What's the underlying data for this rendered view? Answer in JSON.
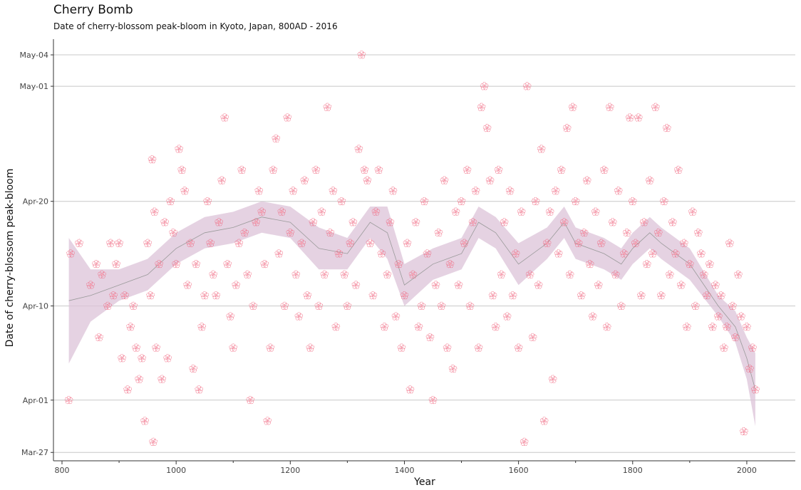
{
  "chart_data": {
    "type": "scatter",
    "title": "Cherry Bomb",
    "subtitle": "Date of cherry-blossom peak-bloom in Kyoto, Japan, 800AD - 2016",
    "xlabel": "Year",
    "ylabel": "Date of cherry-blossom peak-bloom",
    "xlim": [
      785,
      2085
    ],
    "ylim": [
      85.2,
      125.5
    ],
    "x_ticks": [
      800,
      1000,
      1200,
      1400,
      1600,
      1800,
      2000
    ],
    "x_tick_labels": [
      "800",
      "1000",
      "1200",
      "1400",
      "1600",
      "1800",
      "2000"
    ],
    "y_ticks": [
      86,
      91,
      100,
      110,
      121,
      124
    ],
    "y_tick_labels": [
      "Mar-27",
      "Apr-01",
      "Apr-10",
      "Apr-20",
      "May-01",
      "May-04"
    ],
    "grid": "horizontal",
    "colors": {
      "point": "#f0607a",
      "ribbon": "#dcc3d8",
      "trend": "#9a9a9a",
      "grid": "#c8c8c8",
      "axis": "#333333"
    },
    "marker": "cherry-blossom-icon",
    "points": [
      [
        812,
        91
      ],
      [
        815,
        105
      ],
      [
        830,
        106
      ],
      [
        850,
        102
      ],
      [
        860,
        104
      ],
      [
        865,
        97
      ],
      [
        870,
        103
      ],
      [
        880,
        100
      ],
      [
        885,
        106
      ],
      [
        890,
        101
      ],
      [
        895,
        104
      ],
      [
        900,
        106
      ],
      [
        905,
        95
      ],
      [
        910,
        101
      ],
      [
        915,
        92
      ],
      [
        920,
        98
      ],
      [
        925,
        100
      ],
      [
        930,
        96
      ],
      [
        935,
        93
      ],
      [
        940,
        95
      ],
      [
        945,
        89
      ],
      [
        950,
        106
      ],
      [
        955,
        101
      ],
      [
        958,
        114
      ],
      [
        960,
        87
      ],
      [
        962,
        109
      ],
      [
        965,
        96
      ],
      [
        970,
        104
      ],
      [
        975,
        93
      ],
      [
        980,
        108
      ],
      [
        985,
        95
      ],
      [
        990,
        110
      ],
      [
        995,
        107
      ],
      [
        1000,
        104
      ],
      [
        1005,
        115
      ],
      [
        1010,
        113
      ],
      [
        1015,
        111
      ],
      [
        1020,
        102
      ],
      [
        1025,
        106
      ],
      [
        1030,
        94
      ],
      [
        1035,
        104
      ],
      [
        1040,
        92
      ],
      [
        1045,
        98
      ],
      [
        1050,
        101
      ],
      [
        1055,
        110
      ],
      [
        1060,
        106
      ],
      [
        1065,
        103
      ],
      [
        1070,
        101
      ],
      [
        1075,
        108
      ],
      [
        1080,
        112
      ],
      [
        1085,
        118
      ],
      [
        1090,
        104
      ],
      [
        1095,
        99
      ],
      [
        1100,
        96
      ],
      [
        1105,
        102
      ],
      [
        1110,
        106
      ],
      [
        1115,
        113
      ],
      [
        1120,
        107
      ],
      [
        1125,
        103
      ],
      [
        1130,
        91
      ],
      [
        1135,
        100
      ],
      [
        1140,
        108
      ],
      [
        1145,
        111
      ],
      [
        1150,
        109
      ],
      [
        1155,
        104
      ],
      [
        1160,
        89
      ],
      [
        1165,
        96
      ],
      [
        1170,
        113
      ],
      [
        1175,
        116
      ],
      [
        1180,
        105
      ],
      [
        1185,
        109
      ],
      [
        1190,
        100
      ],
      [
        1195,
        118
      ],
      [
        1200,
        107
      ],
      [
        1205,
        111
      ],
      [
        1210,
        103
      ],
      [
        1215,
        99
      ],
      [
        1220,
        106
      ],
      [
        1225,
        112
      ],
      [
        1230,
        101
      ],
      [
        1235,
        96
      ],
      [
        1240,
        108
      ],
      [
        1245,
        113
      ],
      [
        1250,
        100
      ],
      [
        1255,
        109
      ],
      [
        1260,
        103
      ],
      [
        1265,
        119
      ],
      [
        1270,
        107
      ],
      [
        1275,
        111
      ],
      [
        1280,
        98
      ],
      [
        1285,
        105
      ],
      [
        1290,
        110
      ],
      [
        1295,
        103
      ],
      [
        1300,
        100
      ],
      [
        1305,
        106
      ],
      [
        1310,
        108
      ],
      [
        1315,
        102
      ],
      [
        1320,
        115
      ],
      [
        1325,
        124
      ],
      [
        1330,
        113
      ],
      [
        1335,
        112
      ],
      [
        1340,
        106
      ],
      [
        1345,
        101
      ],
      [
        1350,
        109
      ],
      [
        1355,
        113
      ],
      [
        1360,
        105
      ],
      [
        1365,
        98
      ],
      [
        1370,
        103
      ],
      [
        1375,
        108
      ],
      [
        1380,
        111
      ],
      [
        1385,
        99
      ],
      [
        1390,
        104
      ],
      [
        1395,
        96
      ],
      [
        1400,
        101
      ],
      [
        1405,
        106
      ],
      [
        1410,
        92
      ],
      [
        1415,
        103
      ],
      [
        1420,
        108
      ],
      [
        1425,
        98
      ],
      [
        1430,
        100
      ],
      [
        1435,
        110
      ],
      [
        1440,
        105
      ],
      [
        1445,
        97
      ],
      [
        1450,
        91
      ],
      [
        1455,
        102
      ],
      [
        1460,
        107
      ],
      [
        1465,
        100
      ],
      [
        1470,
        112
      ],
      [
        1475,
        96
      ],
      [
        1480,
        104
      ],
      [
        1485,
        94
      ],
      [
        1490,
        109
      ],
      [
        1495,
        102
      ],
      [
        1500,
        110
      ],
      [
        1505,
        106
      ],
      [
        1510,
        113
      ],
      [
        1515,
        100
      ],
      [
        1520,
        108
      ],
      [
        1525,
        111
      ],
      [
        1530,
        96
      ],
      [
        1535,
        119
      ],
      [
        1540,
        121
      ],
      [
        1545,
        117
      ],
      [
        1550,
        112
      ],
      [
        1555,
        101
      ],
      [
        1560,
        98
      ],
      [
        1565,
        113
      ],
      [
        1570,
        103
      ],
      [
        1575,
        108
      ],
      [
        1580,
        99
      ],
      [
        1585,
        111
      ],
      [
        1590,
        101
      ],
      [
        1595,
        105
      ],
      [
        1600,
        96
      ],
      [
        1605,
        109
      ],
      [
        1610,
        87
      ],
      [
        1615,
        121
      ],
      [
        1620,
        103
      ],
      [
        1625,
        97
      ],
      [
        1630,
        110
      ],
      [
        1635,
        102
      ],
      [
        1640,
        115
      ],
      [
        1645,
        89
      ],
      [
        1650,
        106
      ],
      [
        1655,
        109
      ],
      [
        1660,
        93
      ],
      [
        1665,
        111
      ],
      [
        1670,
        105
      ],
      [
        1675,
        113
      ],
      [
        1680,
        108
      ],
      [
        1685,
        117
      ],
      [
        1690,
        103
      ],
      [
        1695,
        119
      ],
      [
        1700,
        110
      ],
      [
        1705,
        106
      ],
      [
        1710,
        101
      ],
      [
        1715,
        107
      ],
      [
        1720,
        112
      ],
      [
        1725,
        104
      ],
      [
        1730,
        99
      ],
      [
        1735,
        109
      ],
      [
        1740,
        102
      ],
      [
        1745,
        106
      ],
      [
        1750,
        113
      ],
      [
        1755,
        98
      ],
      [
        1760,
        119
      ],
      [
        1765,
        108
      ],
      [
        1770,
        103
      ],
      [
        1775,
        111
      ],
      [
        1780,
        100
      ],
      [
        1785,
        105
      ],
      [
        1790,
        107
      ],
      [
        1795,
        118
      ],
      [
        1800,
        110
      ],
      [
        1805,
        106
      ],
      [
        1810,
        118
      ],
      [
        1815,
        101
      ],
      [
        1820,
        108
      ],
      [
        1825,
        104
      ],
      [
        1830,
        112
      ],
      [
        1835,
        105
      ],
      [
        1840,
        119
      ],
      [
        1845,
        107
      ],
      [
        1850,
        101
      ],
      [
        1855,
        110
      ],
      [
        1860,
        117
      ],
      [
        1865,
        103
      ],
      [
        1870,
        108
      ],
      [
        1875,
        105
      ],
      [
        1880,
        113
      ],
      [
        1885,
        102
      ],
      [
        1890,
        106
      ],
      [
        1895,
        98
      ],
      [
        1900,
        104
      ],
      [
        1905,
        109
      ],
      [
        1910,
        100
      ],
      [
        1915,
        107
      ],
      [
        1920,
        105
      ],
      [
        1925,
        103
      ],
      [
        1930,
        101
      ],
      [
        1935,
        104
      ],
      [
        1940,
        98
      ],
      [
        1945,
        102
      ],
      [
        1950,
        99
      ],
      [
        1955,
        101
      ],
      [
        1960,
        96
      ],
      [
        1965,
        98
      ],
      [
        1970,
        106
      ],
      [
        1975,
        100
      ],
      [
        1980,
        97
      ],
      [
        1985,
        103
      ],
      [
        1990,
        99
      ],
      [
        1995,
        88
      ],
      [
        2000,
        98
      ],
      [
        2005,
        94
      ],
      [
        2010,
        96
      ],
      [
        2015,
        92
      ]
    ],
    "trend": {
      "x": [
        812,
        850,
        900,
        950,
        1000,
        1050,
        1100,
        1150,
        1200,
        1250,
        1300,
        1340,
        1370,
        1400,
        1450,
        1500,
        1530,
        1560,
        1600,
        1650,
        1680,
        1700,
        1750,
        1780,
        1800,
        1830,
        1850,
        1900,
        1950,
        1980,
        2000,
        2015
      ],
      "y": [
        100.5,
        101,
        102,
        103,
        105.5,
        107,
        107.5,
        108.5,
        108,
        105.5,
        105,
        108,
        107,
        102,
        104,
        105,
        108,
        107,
        104,
        106,
        108,
        106,
        105,
        104,
        105.5,
        107,
        106,
        104,
        100,
        98,
        95,
        92
      ],
      "lower": [
        94.5,
        98.5,
        100.5,
        101.5,
        104,
        105.5,
        106,
        107,
        106.5,
        103.5,
        103.5,
        106.5,
        104.5,
        100,
        102.5,
        103.5,
        106.5,
        105.5,
        102,
        104.5,
        106.5,
        104.5,
        103.5,
        102.5,
        104,
        105.5,
        104.5,
        102.5,
        99,
        96.5,
        93,
        88.5
      ],
      "upper": [
        106.5,
        103.5,
        103.5,
        104.5,
        107,
        108.5,
        109,
        110,
        109.5,
        107.5,
        106.5,
        109.5,
        109.5,
        104,
        105.5,
        106.5,
        109.5,
        108.5,
        106,
        107.5,
        109.5,
        107.5,
        106.5,
        105.5,
        107,
        108.5,
        107.5,
        105.5,
        101,
        99.5,
        97,
        95.5
      ]
    }
  }
}
